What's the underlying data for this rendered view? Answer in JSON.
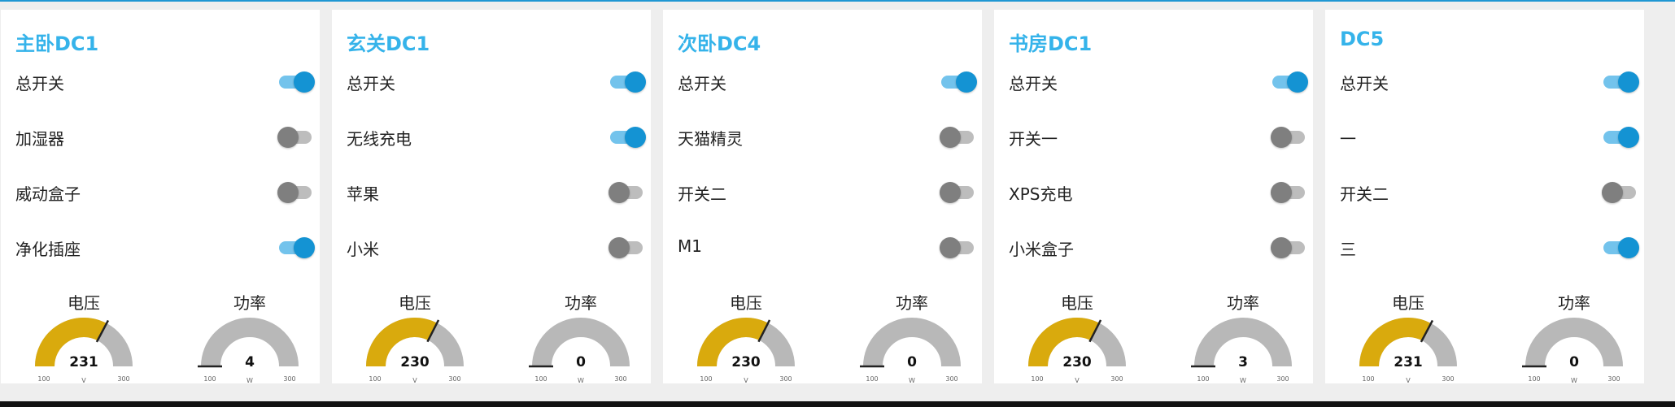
{
  "cards": [
    {
      "title": "主卧DC1",
      "switches": [
        {
          "label": "总开关",
          "on": true
        },
        {
          "label": "加湿器",
          "on": false
        },
        {
          "label": "威动盒子",
          "on": false
        },
        {
          "label": "净化插座",
          "on": true
        }
      ],
      "gauges": [
        {
          "title": "电压",
          "value": "231",
          "unit": "V",
          "min": "100",
          "max": "300"
        },
        {
          "title": "功率",
          "value": "4",
          "unit": "W",
          "min": "100",
          "max": "300"
        }
      ]
    },
    {
      "title": "玄关DC1",
      "switches": [
        {
          "label": "总开关",
          "on": true
        },
        {
          "label": "无线充电",
          "on": true
        },
        {
          "label": "苹果",
          "on": false
        },
        {
          "label": "小米",
          "on": false
        }
      ],
      "gauges": [
        {
          "title": "电压",
          "value": "230",
          "unit": "V",
          "min": "100",
          "max": "300"
        },
        {
          "title": "功率",
          "value": "0",
          "unit": "W",
          "min": "100",
          "max": "300"
        }
      ]
    },
    {
      "title": "次卧DC4",
      "switches": [
        {
          "label": "总开关",
          "on": true
        },
        {
          "label": "天猫精灵",
          "on": false
        },
        {
          "label": "开关二",
          "on": false
        },
        {
          "label": "M1",
          "on": false
        }
      ],
      "gauges": [
        {
          "title": "电压",
          "value": "230",
          "unit": "V",
          "min": "100",
          "max": "300"
        },
        {
          "title": "功率",
          "value": "0",
          "unit": "W",
          "min": "100",
          "max": "300"
        }
      ]
    },
    {
      "title": "书房DC1",
      "switches": [
        {
          "label": "总开关",
          "on": true
        },
        {
          "label": "开关一",
          "on": false
        },
        {
          "label": "XPS充电",
          "on": false
        },
        {
          "label": "小米盒子",
          "on": false
        }
      ],
      "gauges": [
        {
          "title": "电压",
          "value": "230",
          "unit": "V",
          "min": "100",
          "max": "300"
        },
        {
          "title": "功率",
          "value": "3",
          "unit": "W",
          "min": "100",
          "max": "300"
        }
      ]
    },
    {
      "title": "DC5",
      "switches": [
        {
          "label": "总开关",
          "on": true
        },
        {
          "label": "一",
          "on": true
        },
        {
          "label": "开关二",
          "on": false
        },
        {
          "label": "三",
          "on": true
        }
      ],
      "gauges": [
        {
          "title": "电压",
          "value": "231",
          "unit": "V",
          "min": "100",
          "max": "300"
        },
        {
          "title": "功率",
          "value": "0",
          "unit": "W",
          "min": "100",
          "max": "300"
        }
      ]
    }
  ],
  "colors": {
    "accent": "#1493d3",
    "title": "#35b3ea",
    "gauge_fill": "#d9aa0d",
    "gauge_track": "#b8b8b8",
    "toggle_on_track": "#73c3ec",
    "toggle_off_knob": "#7f7f7f"
  }
}
